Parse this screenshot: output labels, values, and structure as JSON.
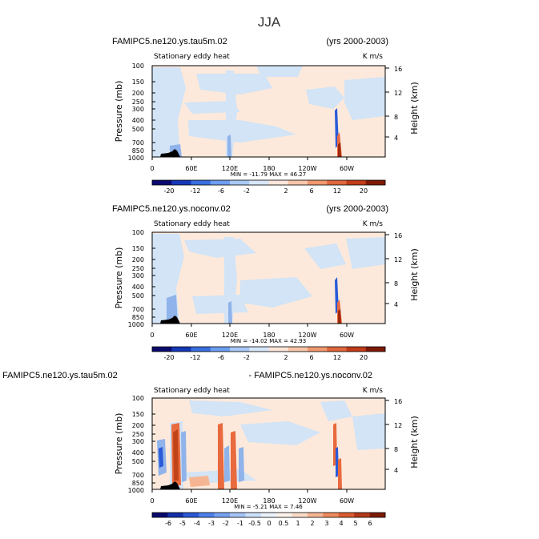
{
  "figure": {
    "title": "JJA"
  },
  "colors": {
    "light_blue": "#d2e4f6",
    "light_orange": "#fde9db",
    "mid_blue": "#8fb3ea",
    "dark_blue": "#2a5ad8",
    "mid_red": "#e86a3e",
    "dark_red": "#a02a10",
    "topo": "#000000"
  },
  "chart_data": [
    {
      "type": "heatmap",
      "title_left": "FAMIPC5.ne120.ys.tau5m.02",
      "title_right": "(yrs 2000-2003)",
      "subtitle_left": "Stationary eddy heat",
      "subtitle_right": "K m/s",
      "ylabel": "Pressure (mb)",
      "ylabel_right": "Height (km)",
      "xticks": [
        "0",
        "60E",
        "120E",
        "180",
        "120W",
        "60W"
      ],
      "yticks": [
        "100",
        "150",
        "200",
        "250",
        "300",
        "400",
        "500",
        "700",
        "850",
        "1000"
      ],
      "yticks_right": [
        "16",
        "12",
        "8",
        "4"
      ],
      "stats": "MIN = -11.79   MAX =  46.27",
      "colorbar_labels": [
        "-20",
        "-12",
        "-6",
        "-2",
        "2",
        "6",
        "12",
        "20"
      ]
    },
    {
      "type": "heatmap",
      "title_left": "FAMIPC5.ne120.ys.noconv.02",
      "title_right": "(yrs 2000-2003)",
      "subtitle_left": "Stationary eddy heat",
      "subtitle_right": "K m/s",
      "ylabel": "Pressure (mb)",
      "ylabel_right": "Height (km)",
      "xticks": [
        "0",
        "60E",
        "120E",
        "180",
        "120W",
        "60W"
      ],
      "yticks": [
        "100",
        "150",
        "200",
        "250",
        "300",
        "400",
        "500",
        "700",
        "850",
        "1000"
      ],
      "yticks_right": [
        "16",
        "12",
        "8",
        "4"
      ],
      "stats": "MIN = -14.02   MAX =  42.93",
      "colorbar_labels": [
        "-20",
        "-12",
        "-6",
        "-2",
        "2",
        "6",
        "12",
        "20"
      ]
    },
    {
      "type": "heatmap",
      "title_left": "FAMIPC5.ne120.ys.tau5m.02",
      "title_right": "- FAMIPC5.ne120.ys.noconv.02",
      "subtitle_left": "Stationary eddy heat",
      "subtitle_right": "K m/s",
      "ylabel": "Pressure (mb)",
      "ylabel_right": "Height (km)",
      "xticks": [
        "0",
        "60E",
        "120E",
        "180",
        "120W",
        "60W"
      ],
      "yticks": [
        "100",
        "150",
        "200",
        "250",
        "300",
        "400",
        "500",
        "700",
        "850",
        "1000"
      ],
      "yticks_right": [
        "16",
        "12",
        "8",
        "4"
      ],
      "stats": "MIN =  -5.21   MAX =   7.46",
      "colorbar_labels": [
        "-6",
        "-5",
        "-4",
        "-3",
        "-2",
        "-1",
        "-0.5",
        "0",
        "0.5",
        "1",
        "2",
        "3",
        "4",
        "5",
        "6"
      ]
    }
  ]
}
